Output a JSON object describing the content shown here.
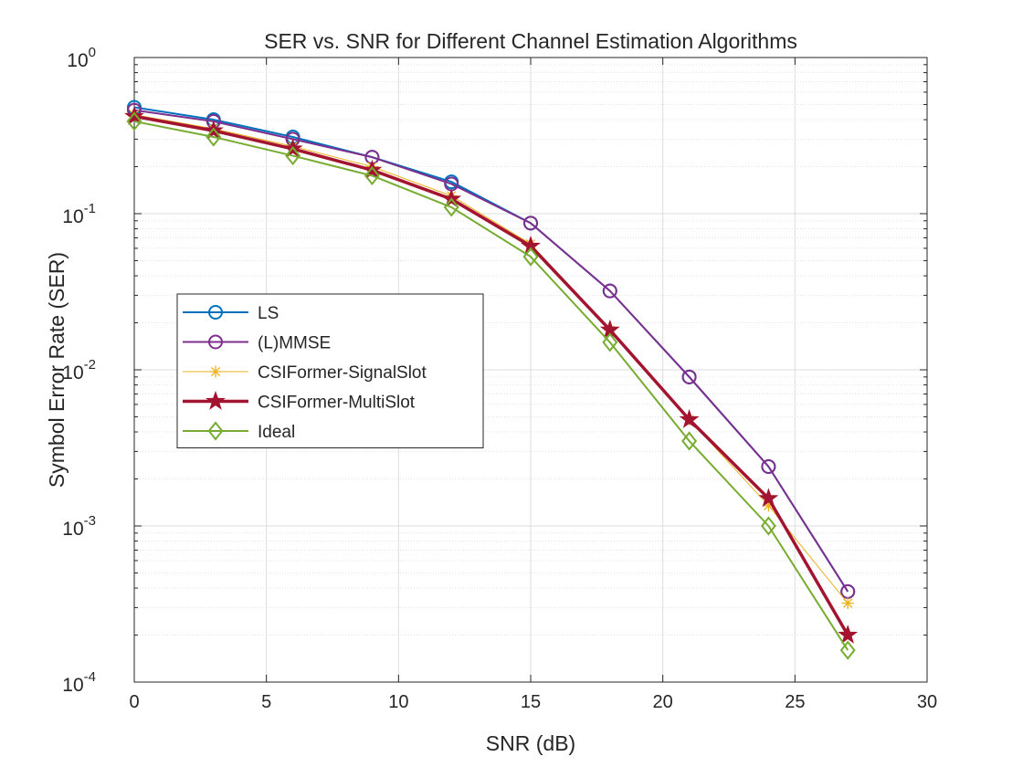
{
  "chart_data": {
    "type": "line",
    "title": "SER vs. SNR for Different Channel Estimation Algorithms",
    "xlabel": "SNR (dB)",
    "ylabel": "Symbol Error Rate (SER)",
    "xlim": [
      0,
      30
    ],
    "ylim": [
      0.0001,
      1
    ],
    "yscale": "log",
    "grid": true,
    "legend_position": "center-left",
    "x_ticks": [
      {
        "value": 0,
        "label": "0"
      },
      {
        "value": 5,
        "label": "5"
      },
      {
        "value": 10,
        "label": "10"
      },
      {
        "value": 15,
        "label": "15"
      },
      {
        "value": 20,
        "label": "20"
      },
      {
        "value": 25,
        "label": "25"
      },
      {
        "value": 30,
        "label": "30"
      }
    ],
    "y_ticks": [
      {
        "value": 1,
        "base": "10",
        "exp": "0"
      },
      {
        "value": 0.1,
        "base": "10",
        "exp": "-1"
      },
      {
        "value": 0.01,
        "base": "10",
        "exp": "-2"
      },
      {
        "value": 0.001,
        "base": "10",
        "exp": "-3"
      },
      {
        "value": 0.0001,
        "base": "10",
        "exp": "-4"
      }
    ],
    "x": [
      0,
      3,
      6,
      9,
      12,
      15,
      18,
      21,
      24,
      27
    ],
    "series": [
      {
        "name": "LS",
        "color": "#0072BD",
        "marker": "circle",
        "line_width": 2,
        "values": [
          0.48,
          0.4,
          0.31,
          0.23,
          0.16,
          0.087,
          0.032,
          0.009,
          0.0024,
          0.00038
        ]
      },
      {
        "name": "(L)MMSE",
        "color": "#7E2F8E",
        "marker": "circle",
        "line_width": 2,
        "values": [
          0.46,
          0.39,
          0.3,
          0.23,
          0.155,
          0.087,
          0.032,
          0.009,
          0.0024,
          0.00038
        ]
      },
      {
        "name": "CSIFormer-SignalSlot",
        "color": "#EDB120",
        "marker": "asterisk",
        "line_width": 1,
        "values": [
          0.43,
          0.35,
          0.27,
          0.2,
          0.13,
          0.064,
          0.018,
          0.0048,
          0.00135,
          0.00032
        ]
      },
      {
        "name": "CSIFormer-MultiSlot",
        "color": "#A2142F",
        "marker": "star",
        "line_width": 3.5,
        "values": [
          0.42,
          0.34,
          0.26,
          0.19,
          0.124,
          0.062,
          0.018,
          0.0048,
          0.0015,
          0.0002
        ]
      },
      {
        "name": "Ideal",
        "color": "#77AC30",
        "marker": "diamond",
        "line_width": 2,
        "values": [
          0.39,
          0.31,
          0.235,
          0.175,
          0.11,
          0.053,
          0.015,
          0.0035,
          0.001,
          0.00016
        ]
      }
    ]
  }
}
